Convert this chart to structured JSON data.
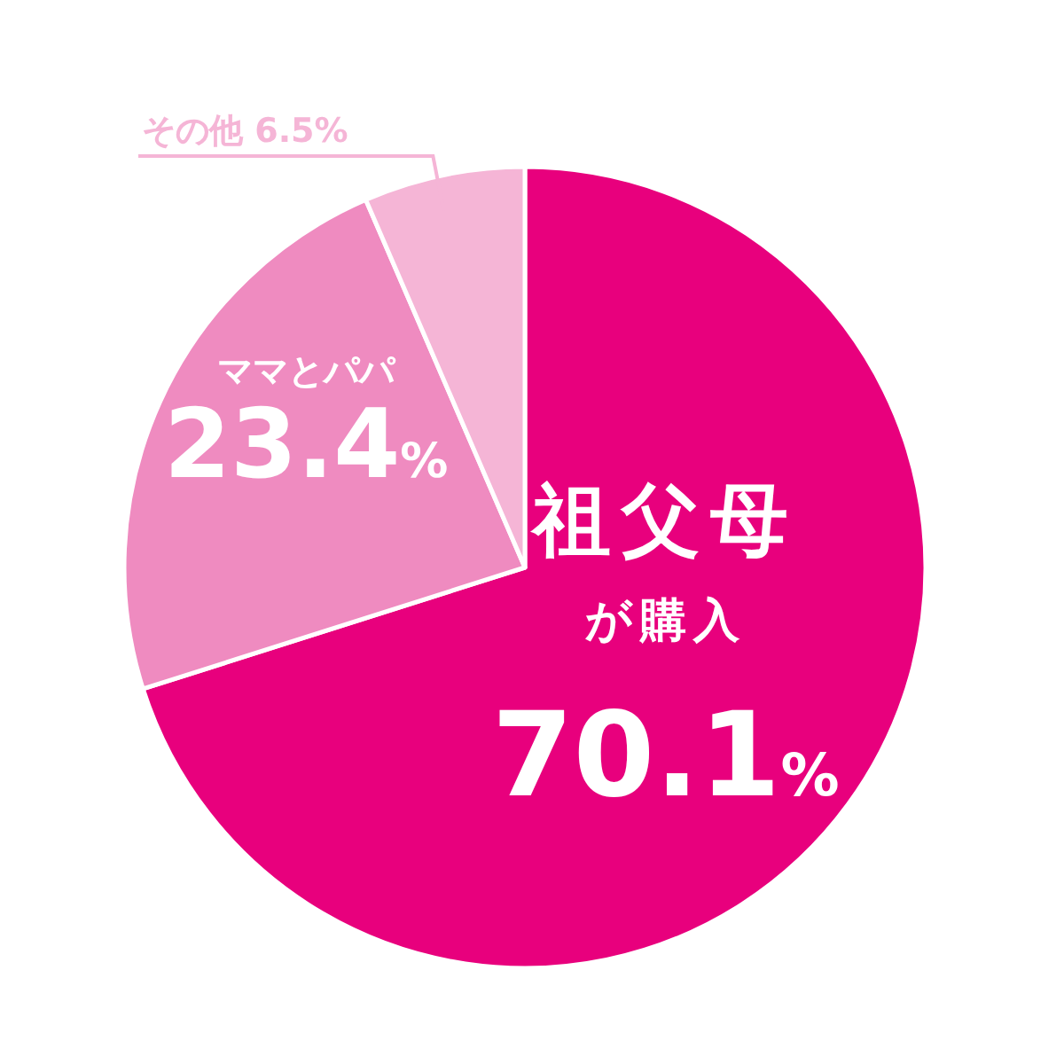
{
  "chart_data": {
    "type": "pie",
    "categories": [
      "祖父母が購入",
      "ママとパパ",
      "その他"
    ],
    "values": [
      70.1,
      23.4,
      6.5
    ],
    "value_labels": [
      "70.1%",
      "23.4%",
      "6.5%"
    ],
    "colors": [
      "#e8007d",
      "#ef8bc0",
      "#f5b5d6"
    ]
  }
}
